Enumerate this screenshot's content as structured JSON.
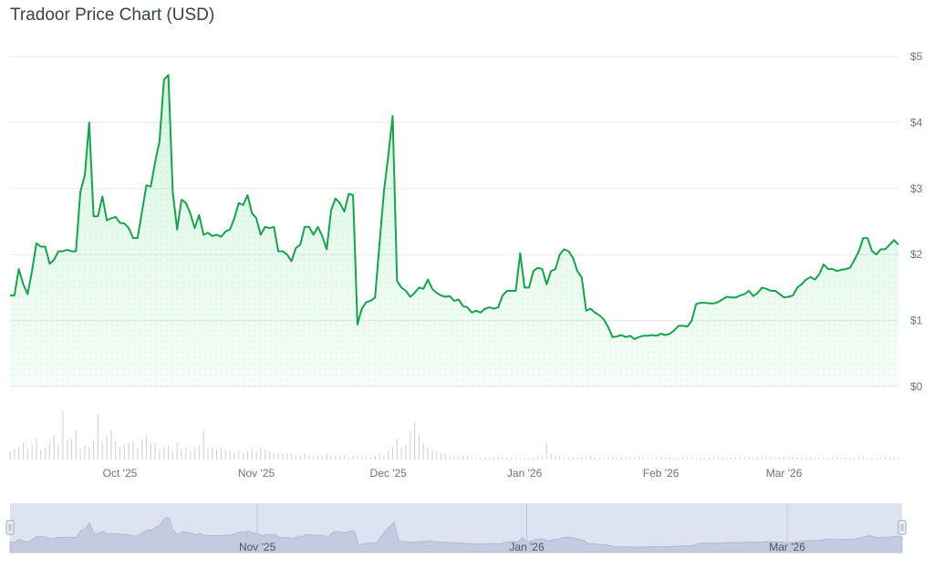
{
  "page": {
    "title": "Tradoor Price Chart (USD)"
  },
  "chart_data": {
    "type": "area",
    "title": "Tradoor Price Chart (USD)",
    "xlabel": "",
    "ylabel": "",
    "ylim": [
      0,
      5
    ],
    "y_ticks": [
      "$0",
      "$1",
      "$2",
      "$3",
      "$4",
      "$5"
    ],
    "x_ticks": [
      {
        "date": "2025-10-01",
        "label": "Oct '25"
      },
      {
        "date": "2025-11-01",
        "label": "Nov '25"
      },
      {
        "date": "2025-12-01",
        "label": "Dec '25"
      },
      {
        "date": "2026-01-01",
        "label": "Jan '26"
      },
      {
        "date": "2026-02-01",
        "label": "Feb '26"
      },
      {
        "date": "2026-03-01",
        "label": "Mar '26"
      }
    ],
    "navigator_ticks": [
      {
        "date": "2025-11-01",
        "label": "Nov '25"
      },
      {
        "date": "2026-01-01",
        "label": "Jan '26"
      },
      {
        "date": "2026-03-01",
        "label": "Mar '26"
      }
    ],
    "color": "#16a34a",
    "grid": true,
    "series": [
      {
        "points": [
          [
            "2025-09-06",
            1.38
          ],
          [
            "2025-09-07",
            1.38
          ],
          [
            "2025-09-08",
            1.78
          ],
          [
            "2025-09-09",
            1.55
          ],
          [
            "2025-09-10",
            1.4
          ],
          [
            "2025-09-11",
            1.75
          ],
          [
            "2025-09-12",
            2.17
          ],
          [
            "2025-09-13",
            2.12
          ],
          [
            "2025-09-14",
            2.12
          ],
          [
            "2025-09-15",
            1.86
          ],
          [
            "2025-09-16",
            1.92
          ],
          [
            "2025-09-17",
            2.05
          ],
          [
            "2025-09-18",
            2.05
          ],
          [
            "2025-09-19",
            2.07
          ],
          [
            "2025-09-20",
            2.05
          ],
          [
            "2025-09-21",
            2.05
          ],
          [
            "2025-09-22",
            2.95
          ],
          [
            "2025-09-23",
            3.2
          ],
          [
            "2025-09-24",
            4.0
          ],
          [
            "2025-09-25",
            2.58
          ],
          [
            "2025-09-26",
            2.58
          ],
          [
            "2025-09-27",
            2.88
          ],
          [
            "2025-09-28",
            2.52
          ],
          [
            "2025-09-29",
            2.55
          ],
          [
            "2025-09-30",
            2.57
          ],
          [
            "2025-10-01",
            2.48
          ],
          [
            "2025-10-02",
            2.47
          ],
          [
            "2025-10-03",
            2.4
          ],
          [
            "2025-10-04",
            2.25
          ],
          [
            "2025-10-05",
            2.25
          ],
          [
            "2025-10-06",
            2.65
          ],
          [
            "2025-10-07",
            3.05
          ],
          [
            "2025-10-08",
            3.03
          ],
          [
            "2025-10-09",
            3.4
          ],
          [
            "2025-10-10",
            3.72
          ],
          [
            "2025-10-11",
            4.65
          ],
          [
            "2025-10-12",
            4.72
          ],
          [
            "2025-10-13",
            2.95
          ],
          [
            "2025-10-14",
            2.38
          ],
          [
            "2025-10-15",
            2.83
          ],
          [
            "2025-10-16",
            2.78
          ],
          [
            "2025-10-17",
            2.62
          ],
          [
            "2025-10-18",
            2.4
          ],
          [
            "2025-10-19",
            2.6
          ],
          [
            "2025-10-20",
            2.3
          ],
          [
            "2025-10-21",
            2.33
          ],
          [
            "2025-10-22",
            2.28
          ],
          [
            "2025-10-23",
            2.3
          ],
          [
            "2025-10-24",
            2.27
          ],
          [
            "2025-10-25",
            2.35
          ],
          [
            "2025-10-26",
            2.38
          ],
          [
            "2025-10-27",
            2.55
          ],
          [
            "2025-10-28",
            2.78
          ],
          [
            "2025-10-29",
            2.75
          ],
          [
            "2025-10-30",
            2.9
          ],
          [
            "2025-10-31",
            2.63
          ],
          [
            "2025-11-01",
            2.55
          ],
          [
            "2025-11-02",
            2.3
          ],
          [
            "2025-11-03",
            2.42
          ],
          [
            "2025-11-04",
            2.4
          ],
          [
            "2025-11-05",
            2.42
          ],
          [
            "2025-11-06",
            2.05
          ],
          [
            "2025-11-07",
            2.05
          ],
          [
            "2025-11-08",
            2.0
          ],
          [
            "2025-11-09",
            1.9
          ],
          [
            "2025-11-10",
            2.1
          ],
          [
            "2025-11-11",
            2.15
          ],
          [
            "2025-11-12",
            2.42
          ],
          [
            "2025-11-13",
            2.42
          ],
          [
            "2025-11-14",
            2.3
          ],
          [
            "2025-11-15",
            2.42
          ],
          [
            "2025-11-16",
            2.28
          ],
          [
            "2025-11-17",
            2.08
          ],
          [
            "2025-11-18",
            2.67
          ],
          [
            "2025-11-19",
            2.85
          ],
          [
            "2025-11-20",
            2.78
          ],
          [
            "2025-11-21",
            2.65
          ],
          [
            "2025-11-22",
            2.92
          ],
          [
            "2025-11-23",
            2.9
          ],
          [
            "2025-11-24",
            0.94
          ],
          [
            "2025-11-25",
            1.18
          ],
          [
            "2025-11-26",
            1.28
          ],
          [
            "2025-11-27",
            1.3
          ],
          [
            "2025-11-28",
            1.35
          ],
          [
            "2025-11-29",
            2.15
          ],
          [
            "2025-11-30",
            2.95
          ],
          [
            "2025-12-01",
            3.5
          ],
          [
            "2025-12-02",
            4.1
          ],
          [
            "2025-12-03",
            1.6
          ],
          [
            "2025-12-04",
            1.5
          ],
          [
            "2025-12-05",
            1.45
          ],
          [
            "2025-12-06",
            1.36
          ],
          [
            "2025-12-07",
            1.42
          ],
          [
            "2025-12-08",
            1.5
          ],
          [
            "2025-12-09",
            1.48
          ],
          [
            "2025-12-10",
            1.62
          ],
          [
            "2025-12-11",
            1.48
          ],
          [
            "2025-12-12",
            1.42
          ],
          [
            "2025-12-13",
            1.38
          ],
          [
            "2025-12-14",
            1.36
          ],
          [
            "2025-12-15",
            1.37
          ],
          [
            "2025-12-16",
            1.3
          ],
          [
            "2025-12-17",
            1.32
          ],
          [
            "2025-12-18",
            1.22
          ],
          [
            "2025-12-19",
            1.2
          ],
          [
            "2025-12-20",
            1.12
          ],
          [
            "2025-12-21",
            1.15
          ],
          [
            "2025-12-22",
            1.12
          ],
          [
            "2025-12-23",
            1.18
          ],
          [
            "2025-12-24",
            1.2
          ],
          [
            "2025-12-25",
            1.18
          ],
          [
            "2025-12-26",
            1.2
          ],
          [
            "2025-12-27",
            1.38
          ],
          [
            "2025-12-28",
            1.45
          ],
          [
            "2025-12-29",
            1.45
          ],
          [
            "2025-12-30",
            1.45
          ],
          [
            "2025-12-31",
            2.02
          ],
          [
            "2026-01-01",
            1.5
          ],
          [
            "2026-01-02",
            1.5
          ],
          [
            "2026-01-03",
            1.75
          ],
          [
            "2026-01-04",
            1.8
          ],
          [
            "2026-01-05",
            1.78
          ],
          [
            "2026-01-06",
            1.55
          ],
          [
            "2026-01-07",
            1.75
          ],
          [
            "2026-01-08",
            1.78
          ],
          [
            "2026-01-09",
            2.0
          ],
          [
            "2026-01-10",
            2.08
          ],
          [
            "2026-01-11",
            2.05
          ],
          [
            "2026-01-12",
            1.95
          ],
          [
            "2026-01-13",
            1.75
          ],
          [
            "2026-01-14",
            1.65
          ],
          [
            "2026-01-15",
            1.15
          ],
          [
            "2026-01-16",
            1.18
          ],
          [
            "2026-01-17",
            1.12
          ],
          [
            "2026-01-18",
            1.08
          ],
          [
            "2026-01-19",
            1.02
          ],
          [
            "2026-01-20",
            0.9
          ],
          [
            "2026-01-21",
            0.75
          ],
          [
            "2026-01-22",
            0.76
          ],
          [
            "2026-01-23",
            0.78
          ],
          [
            "2026-01-24",
            0.75
          ],
          [
            "2026-01-25",
            0.77
          ],
          [
            "2026-01-26",
            0.72
          ],
          [
            "2026-01-27",
            0.75
          ],
          [
            "2026-01-28",
            0.77
          ],
          [
            "2026-01-29",
            0.77
          ],
          [
            "2026-01-30",
            0.78
          ],
          [
            "2026-01-31",
            0.77
          ],
          [
            "2026-02-01",
            0.8
          ],
          [
            "2026-02-02",
            0.78
          ],
          [
            "2026-02-03",
            0.8
          ],
          [
            "2026-02-04",
            0.85
          ],
          [
            "2026-02-05",
            0.92
          ],
          [
            "2026-02-06",
            0.92
          ],
          [
            "2026-02-07",
            0.91
          ],
          [
            "2026-02-08",
            1.0
          ],
          [
            "2026-02-09",
            1.25
          ],
          [
            "2026-02-10",
            1.27
          ],
          [
            "2026-02-11",
            1.27
          ],
          [
            "2026-02-12",
            1.26
          ],
          [
            "2026-02-13",
            1.26
          ],
          [
            "2026-02-14",
            1.28
          ],
          [
            "2026-02-15",
            1.32
          ],
          [
            "2026-02-16",
            1.36
          ],
          [
            "2026-02-17",
            1.35
          ],
          [
            "2026-02-18",
            1.35
          ],
          [
            "2026-02-19",
            1.38
          ],
          [
            "2026-02-20",
            1.4
          ],
          [
            "2026-02-21",
            1.45
          ],
          [
            "2026-02-22",
            1.37
          ],
          [
            "2026-02-23",
            1.42
          ],
          [
            "2026-02-24",
            1.5
          ],
          [
            "2026-02-25",
            1.48
          ],
          [
            "2026-02-26",
            1.45
          ],
          [
            "2026-02-27",
            1.45
          ],
          [
            "2026-02-28",
            1.4
          ],
          [
            "2026-03-01",
            1.35
          ],
          [
            "2026-03-02",
            1.36
          ],
          [
            "2026-03-03",
            1.38
          ],
          [
            "2026-03-04",
            1.5
          ],
          [
            "2026-03-05",
            1.55
          ],
          [
            "2026-03-06",
            1.62
          ],
          [
            "2026-03-07",
            1.66
          ],
          [
            "2026-03-08",
            1.62
          ],
          [
            "2026-03-09",
            1.7
          ],
          [
            "2026-03-10",
            1.85
          ],
          [
            "2026-03-11",
            1.78
          ],
          [
            "2026-03-12",
            1.78
          ],
          [
            "2026-03-13",
            1.75
          ],
          [
            "2026-03-14",
            1.77
          ],
          [
            "2026-03-15",
            1.78
          ],
          [
            "2026-03-16",
            1.8
          ],
          [
            "2026-03-17",
            1.92
          ],
          [
            "2026-03-18",
            2.05
          ],
          [
            "2026-03-19",
            2.25
          ],
          [
            "2026-03-20",
            2.25
          ],
          [
            "2026-03-21",
            2.05
          ],
          [
            "2026-03-22",
            2.0
          ],
          [
            "2026-03-23",
            2.08
          ],
          [
            "2026-03-24",
            2.08
          ],
          [
            "2026-03-25",
            2.15
          ],
          [
            "2026-03-26",
            2.22
          ],
          [
            "2026-03-27",
            2.15
          ]
        ]
      }
    ],
    "volume": [
      4,
      5,
      6,
      8,
      5,
      7,
      10,
      5,
      6,
      8,
      12,
      7,
      24,
      9,
      10,
      14,
      5,
      7,
      6,
      9,
      22,
      8,
      12,
      14,
      9,
      6,
      7,
      8,
      9,
      6,
      10,
      12,
      8,
      8,
      5,
      6,
      7,
      4,
      8,
      5,
      6,
      4,
      5,
      7,
      14,
      5,
      6,
      5,
      6,
      4,
      4,
      3,
      4,
      3,
      4,
      5,
      4,
      6,
      5,
      4,
      3,
      3,
      3,
      3,
      3,
      2,
      2,
      3,
      2,
      2,
      2,
      2,
      3,
      2,
      2,
      2,
      2,
      1,
      2,
      2,
      1,
      1,
      1,
      2,
      3,
      2,
      4,
      6,
      10,
      6,
      7,
      14,
      18,
      12,
      8,
      6,
      5,
      4,
      3,
      3,
      2,
      2,
      2,
      2,
      2,
      1,
      1,
      1,
      1,
      1,
      1,
      1,
      1,
      1,
      1,
      1,
      1,
      1,
      1,
      1,
      1,
      2,
      8,
      3,
      2,
      2,
      1,
      1,
      1,
      1,
      1,
      1,
      2,
      1,
      1,
      1,
      1,
      1,
      1,
      1,
      1,
      1,
      1,
      1,
      1,
      1,
      1,
      1,
      1,
      1,
      1,
      1,
      1,
      1,
      1,
      1,
      1,
      1,
      1,
      1,
      1,
      1,
      1,
      1,
      1,
      1,
      1,
      1,
      1,
      1,
      1,
      1,
      1,
      1,
      1,
      1,
      1,
      1,
      1,
      1,
      1,
      1,
      1,
      1,
      1,
      1,
      1,
      1,
      1,
      1,
      1,
      1,
      1,
      1,
      1,
      1,
      1,
      1,
      1,
      1,
      1,
      1,
      1,
      1,
      1,
      1,
      1,
      1,
      1,
      1
    ]
  }
}
